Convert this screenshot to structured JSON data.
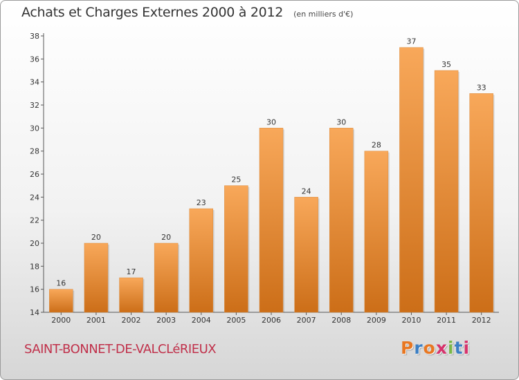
{
  "header": {
    "title": "Achats et Charges Externes 2000 à 2012",
    "subtitle": "(en milliers d'€)"
  },
  "footer": {
    "commune": "SAINT-BONNET-DE-VALCLéRIEUX",
    "logo": "Proxiti"
  },
  "colors": {
    "bar_light": "#f8a85a",
    "bar_dark": "#cc6e18",
    "logo_letters": [
      "#e87722",
      "#3b7fc4",
      "#e87722",
      "#d6336c",
      "#7ab648",
      "#3b7fc4",
      "#d6336c"
    ]
  },
  "chart_data": {
    "type": "bar",
    "title": "Achats et Charges Externes 2000 à 2012",
    "subtitle": "(en milliers d'€)",
    "xlabel": "",
    "ylabel": "",
    "categories": [
      "2000",
      "2001",
      "2002",
      "2003",
      "2004",
      "2005",
      "2006",
      "2007",
      "2008",
      "2009",
      "2010",
      "2011",
      "2012"
    ],
    "values": [
      16,
      20,
      17,
      20,
      23,
      25,
      30,
      24,
      30,
      28,
      37,
      35,
      33
    ],
    "ylim": [
      14,
      38
    ],
    "yticks": [
      14,
      16,
      18,
      20,
      22,
      24,
      26,
      28,
      30,
      32,
      34,
      36,
      38
    ],
    "grid": false,
    "data_labels": true
  }
}
